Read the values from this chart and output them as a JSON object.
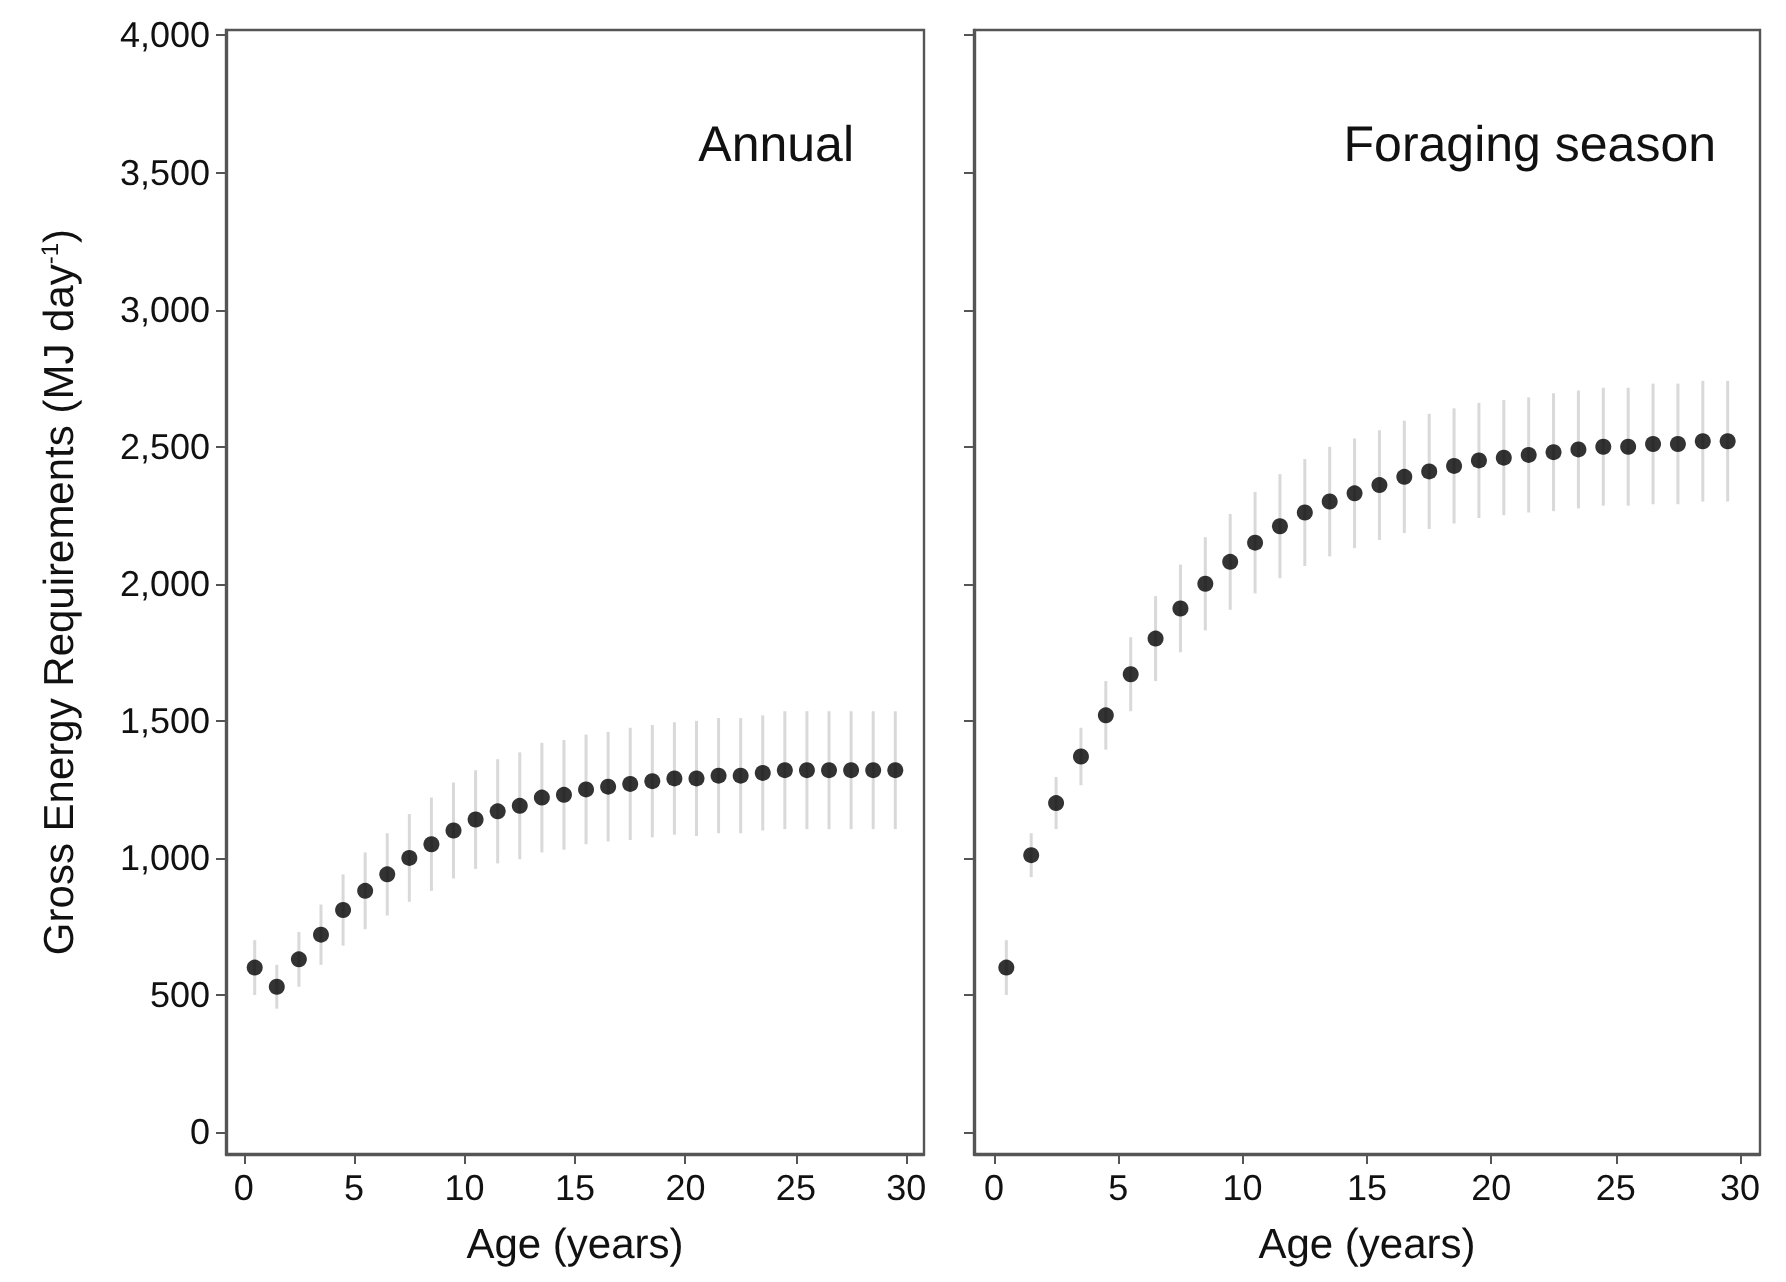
{
  "chart_data": [
    {
      "type": "scatter",
      "title": "Annual",
      "xlabel": "Age (years)",
      "ylabel": "Gross Energy Requirements (MJ day$^{-1}$)",
      "marker": "circle",
      "grid": false,
      "xlim": [
        -0.8,
        30.8
      ],
      "xticks": [
        0,
        5,
        10,
        15,
        20,
        25,
        30
      ],
      "ylim": [
        -80,
        4020
      ],
      "yticks": [
        {
          "value": 0,
          "label": "0"
        },
        {
          "value": 500,
          "label": "500"
        },
        {
          "value": 1000,
          "label": "1,000"
        },
        {
          "value": 1500,
          "label": "1,500"
        },
        {
          "value": 2000,
          "label": "2,000"
        },
        {
          "value": 2500,
          "label": "2,500"
        },
        {
          "value": 3000,
          "label": "3,000"
        },
        {
          "value": 3500,
          "label": "3,500"
        },
        {
          "value": 4000,
          "label": "4,000"
        }
      ],
      "x": [
        0.5,
        1.5,
        2.5,
        3.5,
        4.5,
        5.5,
        6.5,
        7.5,
        8.5,
        9.5,
        10.5,
        11.5,
        12.5,
        13.5,
        14.5,
        15.5,
        16.5,
        17.5,
        18.5,
        19.5,
        20.5,
        21.5,
        22.5,
        23.5,
        24.5,
        25.5,
        26.5,
        27.5,
        28.5,
        29.5
      ],
      "series": [
        {
          "color": "#000000",
          "values": [
            600,
            530,
            630,
            720,
            810,
            880,
            940,
            1000,
            1050,
            1100,
            1140,
            1170,
            1190,
            1220,
            1230,
            1250,
            1260,
            1270,
            1280,
            1290,
            1290,
            1300,
            1300,
            1310,
            1320,
            1320,
            1320,
            1320,
            1320,
            1320
          ],
          "errors": [
            100,
            80,
            100,
            110,
            130,
            140,
            150,
            160,
            170,
            175,
            180,
            190,
            195,
            200,
            200,
            200,
            200,
            205,
            205,
            205,
            210,
            210,
            210,
            210,
            215,
            215,
            215,
            215,
            215,
            215
          ]
        }
      ]
    },
    {
      "type": "scatter",
      "title": "Foraging season",
      "xlabel": "Age (years)",
      "marker": "circle",
      "grid": false,
      "tick_labels": "x",
      "xlim": [
        -0.8,
        30.8
      ],
      "xticks": [
        0,
        5,
        10,
        15,
        20,
        25,
        30
      ],
      "ylim": [
        -80,
        4020
      ],
      "yticks": [
        0,
        500,
        1000,
        1500,
        2000,
        2500,
        3000,
        3500,
        4000
      ],
      "x": [
        0.5,
        1.5,
        2.5,
        3.5,
        4.5,
        5.5,
        6.5,
        7.5,
        8.5,
        9.5,
        10.5,
        11.5,
        12.5,
        13.5,
        14.5,
        15.5,
        16.5,
        17.5,
        18.5,
        19.5,
        20.5,
        21.5,
        22.5,
        23.5,
        24.5,
        25.5,
        26.5,
        27.5,
        28.5,
        29.5
      ],
      "series": [
        {
          "color": "#000000",
          "values": [
            600,
            1010,
            1200,
            1370,
            1520,
            1670,
            1800,
            1910,
            2000,
            2080,
            2150,
            2210,
            2260,
            2300,
            2330,
            2360,
            2390,
            2410,
            2430,
            2450,
            2460,
            2470,
            2480,
            2490,
            2500,
            2500,
            2510,
            2510,
            2520,
            2520
          ],
          "errors": [
            100,
            80,
            95,
            105,
            125,
            135,
            155,
            160,
            170,
            175,
            185,
            190,
            195,
            200,
            200,
            200,
            205,
            210,
            210,
            210,
            210,
            210,
            215,
            215,
            215,
            215,
            220,
            220,
            220,
            220
          ]
        }
      ]
    }
  ]
}
